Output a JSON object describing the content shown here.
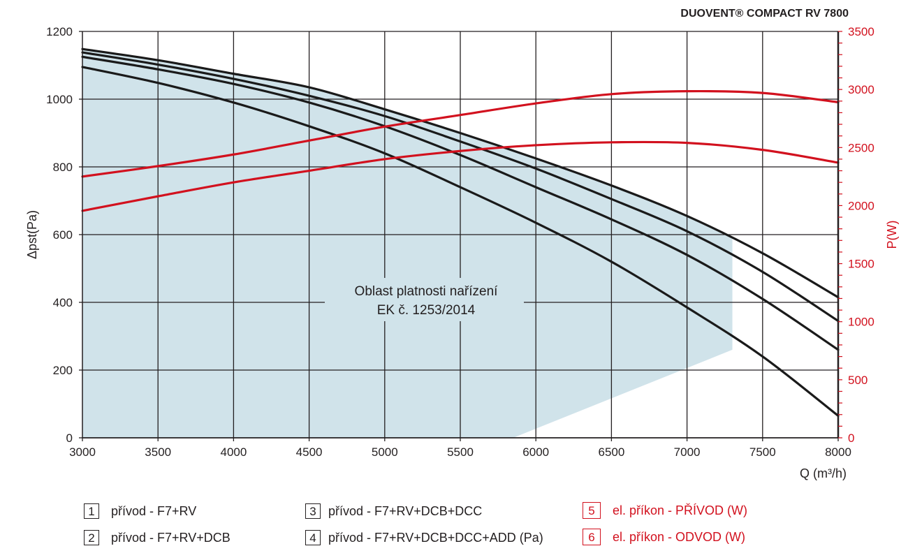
{
  "chart_data": {
    "type": "line",
    "title": "DUOVENT® COMPACT RV 7800",
    "xlabel": "Q (m³/h)",
    "ylabel": "Δpst(Pa)",
    "ylabel_right": "P(W)",
    "xlim": [
      3000,
      8000
    ],
    "ylim": [
      0,
      1200
    ],
    "ylim_right": [
      0,
      3500
    ],
    "x_ticks": [
      "3000",
      "3500",
      "4000",
      "4500",
      "5000",
      "5500",
      "6000",
      "6500",
      "7000",
      "7500",
      "8000"
    ],
    "y_ticks": [
      "0",
      "200",
      "400",
      "600",
      "800",
      "1000",
      "1200"
    ],
    "y_ticks_right": [
      "0",
      "500",
      "1000",
      "1500",
      "2000",
      "2500",
      "3000",
      "3500"
    ],
    "grid": true,
    "annotation": [
      "Oblast platnosti nařízení",
      "EK č. 1253/2014"
    ],
    "region": {
      "label": "Oblast platnosti nařízení EK č. 1253/2014",
      "color": "#d0e3ea",
      "right_edge_q": 7300,
      "right_edge_bottom_pa": 260,
      "bottom_q": 5850
    },
    "series": [
      {
        "id": 1,
        "name": "přívod - F7+RV",
        "axis": "left",
        "color": "#1a1a1a",
        "x": [
          3000,
          3500,
          4000,
          4500,
          5000,
          5500,
          6000,
          6500,
          7000,
          7500,
          8000
        ],
        "values": [
          1148,
          1115,
          1075,
          1035,
          970,
          900,
          825,
          745,
          655,
          545,
          415
        ]
      },
      {
        "id": 2,
        "name": "přívod - F7+RV+DCB",
        "axis": "left",
        "color": "#1a1a1a",
        "x": [
          3000,
          3500,
          4000,
          4500,
          5000,
          5500,
          6000,
          6500,
          7000,
          7500,
          8000
        ],
        "values": [
          1138,
          1102,
          1060,
          1010,
          950,
          875,
          795,
          705,
          610,
          490,
          345
        ]
      },
      {
        "id": 3,
        "name": "přívod - F7+RV+DCB+DCC",
        "axis": "left",
        "color": "#1a1a1a",
        "x": [
          3000,
          3500,
          4000,
          4500,
          5000,
          5500,
          6000,
          6500,
          7000,
          7500,
          8000
        ],
        "values": [
          1125,
          1088,
          1045,
          990,
          920,
          835,
          740,
          645,
          540,
          410,
          260
        ]
      },
      {
        "id": 4,
        "name": "přívod - F7+RV+DCB+DCC+ADD (Pa)",
        "axis": "left",
        "color": "#1a1a1a",
        "x": [
          3000,
          3500,
          4000,
          4500,
          5000,
          5500,
          6000,
          6500,
          7000,
          7500,
          8000
        ],
        "values": [
          1095,
          1048,
          990,
          920,
          840,
          740,
          635,
          520,
          385,
          240,
          65
        ]
      },
      {
        "id": 5,
        "name": "el. příkon - PŘÍVOD (W)",
        "axis": "right",
        "color": "#d2111e",
        "x": [
          3000,
          3500,
          4000,
          4500,
          5000,
          5500,
          6000,
          6500,
          7000,
          7500,
          8000
        ],
        "values": [
          2250,
          2340,
          2440,
          2560,
          2680,
          2780,
          2880,
          2960,
          2985,
          2970,
          2890
        ]
      },
      {
        "id": 6,
        "name": "el. příkon - ODVOD (W)",
        "axis": "right",
        "color": "#d2111e",
        "x": [
          3000,
          3500,
          4000,
          4500,
          5000,
          5500,
          6000,
          6500,
          7000,
          7500,
          8000
        ],
        "values": [
          1955,
          2080,
          2200,
          2300,
          2400,
          2470,
          2520,
          2545,
          2540,
          2480,
          2370
        ]
      }
    ]
  },
  "legend": [
    {
      "num": "1",
      "label": "přívod - F7+RV",
      "color": "#231f20"
    },
    {
      "num": "2",
      "label": "přívod - F7+RV+DCB",
      "color": "#231f20"
    },
    {
      "num": "3",
      "label": "přívod - F7+RV+DCB+DCC",
      "color": "#231f20"
    },
    {
      "num": "4",
      "label": "přívod - F7+RV+DCB+DCC+ADD (Pa)",
      "color": "#231f20"
    },
    {
      "num": "5",
      "label": "el. příkon - PŘÍVOD (W)",
      "color": "#d2111e"
    },
    {
      "num": "6",
      "label": "el. příkon - ODVOD (W)",
      "color": "#d2111e"
    }
  ]
}
